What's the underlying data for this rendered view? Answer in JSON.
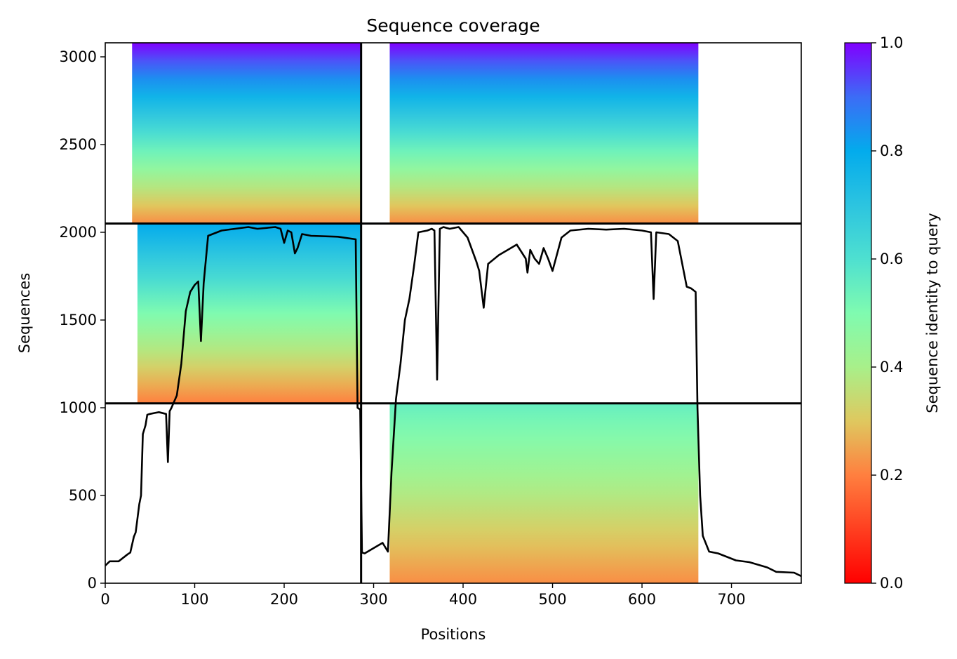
{
  "chart_data": {
    "type": "heatmap",
    "title": "Sequence coverage",
    "xlabel": "Positions",
    "ylabel": "Sequences",
    "xlim": [
      0,
      778
    ],
    "ylim": [
      0,
      3080
    ],
    "xticks": [
      0,
      100,
      200,
      300,
      400,
      500,
      600,
      700
    ],
    "yticks": [
      0,
      500,
      1000,
      1500,
      2000,
      2500,
      3000
    ],
    "grid": false,
    "domain_boundaries_x": [
      286
    ],
    "domain_boundaries_y": [
      1025,
      2050
    ],
    "blocks": [
      {
        "name": "lower-right",
        "x": [
          318,
          663
        ],
        "y": [
          0,
          1025
        ],
        "identity_bottom": 0.22,
        "identity_top": 0.55
      },
      {
        "name": "middle-left",
        "x": [
          36,
          286
        ],
        "y": [
          1025,
          2050
        ],
        "identity_bottom": 0.2,
        "identity_top": 0.8
      },
      {
        "name": "upper-left",
        "x": [
          30,
          286
        ],
        "y": [
          2050,
          3080
        ],
        "identity_bottom": 0.22,
        "identity_top": 1.0
      },
      {
        "name": "upper-right",
        "x": [
          318,
          663
        ],
        "y": [
          2050,
          3080
        ],
        "identity_bottom": 0.22,
        "identity_top": 1.0
      }
    ],
    "coverage_line": {
      "name": "",
      "x": [
        0,
        5,
        15,
        25,
        28,
        32,
        34,
        38,
        40,
        42,
        45,
        47,
        50,
        55,
        60,
        68,
        70,
        72,
        74,
        80,
        85,
        90,
        95,
        100,
        104,
        107,
        110,
        115,
        130,
        160,
        170,
        190,
        196,
        200,
        204,
        208,
        212,
        215,
        220,
        230,
        260,
        280,
        282,
        285,
        287,
        290,
        300,
        310,
        316,
        320,
        325,
        330,
        335,
        340,
        345,
        350,
        360,
        365,
        368,
        371,
        374,
        378,
        385,
        395,
        405,
        415,
        418,
        423,
        428,
        440,
        450,
        460,
        470,
        472,
        475,
        480,
        485,
        490,
        495,
        500,
        510,
        520,
        540,
        560,
        580,
        600,
        610,
        613,
        616,
        630,
        640,
        650,
        655,
        660,
        662,
        665,
        668,
        675,
        685,
        695,
        705,
        720,
        740,
        750,
        770,
        778
      ],
      "y": [
        100,
        125,
        125,
        165,
        175,
        265,
        290,
        450,
        500,
        850,
        900,
        960,
        965,
        970,
        975,
        965,
        690,
        980,
        1000,
        1070,
        1250,
        1550,
        1660,
        1700,
        1720,
        1380,
        1710,
        1980,
        2010,
        2030,
        2020,
        2030,
        2020,
        1940,
        2010,
        2000,
        1880,
        1910,
        1990,
        1980,
        1975,
        1960,
        1000,
        990,
        175,
        170,
        200,
        230,
        180,
        630,
        1050,
        1250,
        1500,
        1620,
        1800,
        2000,
        2010,
        2020,
        2010,
        1160,
        2020,
        2030,
        2020,
        2030,
        1970,
        1830,
        1780,
        1570,
        1820,
        1870,
        1900,
        1930,
        1850,
        1770,
        1900,
        1850,
        1820,
        1910,
        1850,
        1780,
        1970,
        2010,
        2020,
        2015,
        2020,
        2010,
        2000,
        1620,
        2000,
        1990,
        1950,
        1690,
        1680,
        1660,
        1000,
        500,
        270,
        180,
        170,
        150,
        130,
        120,
        90,
        65,
        60,
        40
      ]
    },
    "colorbar": {
      "label": "Sequence identity to query",
      "colormap": "rainbow",
      "range": [
        0.0,
        1.0
      ],
      "ticks": [
        "0.0",
        "0.2",
        "0.4",
        "0.6",
        "0.8",
        "1.0"
      ]
    }
  }
}
